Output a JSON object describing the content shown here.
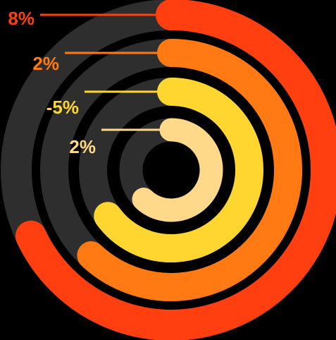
{
  "chart_data": {
    "type": "radial-bar",
    "max": 100,
    "track_color": "#2e2e2e",
    "background": "#000000",
    "rings": [
      {
        "value": 68,
        "label": "8%",
        "color": "#ff3f0f"
      },
      {
        "value": 62,
        "label": "2%",
        "color": "#ff7a12"
      },
      {
        "value": 65,
        "label": "-5%",
        "color": "#ffd630"
      },
      {
        "value": 62,
        "label": "2%",
        "color": "#ffd98a"
      }
    ]
  }
}
